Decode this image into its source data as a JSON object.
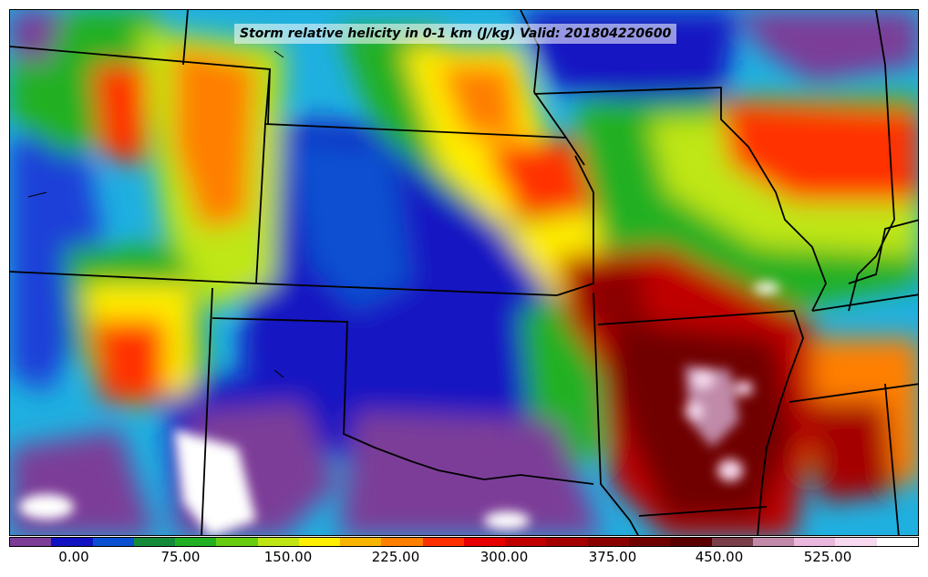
{
  "title": "Storm relative helicity in 0-1 km (J/kg) Valid: 201804220600",
  "colorbar": {
    "colors": [
      "#7b3d98",
      "#1212c2",
      "#0a4fd0",
      "#168a3b",
      "#22b022",
      "#66cc11",
      "#bfe612",
      "#ffee00",
      "#f7b500",
      "#ff7f00",
      "#ff3000",
      "#e60000",
      "#c00000",
      "#a50000",
      "#8a0000",
      "#700000",
      "#5a0000",
      "#7a3f4a",
      "#c08aa8",
      "#eab8dc",
      "#f7d9ef",
      "#ffffff"
    ],
    "tick_labels": [
      "0.00",
      "75.00",
      "150.00",
      "225.00",
      "300.00",
      "375.00",
      "450.00",
      "525.00"
    ]
  }
}
